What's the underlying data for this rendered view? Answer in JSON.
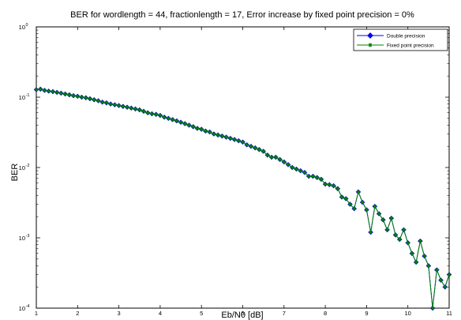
{
  "chart_data": {
    "type": "line",
    "title": "BER for wordlength = 44, fractionlength = 17, Error increase by fixed point precision = 0%",
    "xlabel": "Eb/N0 [dB]",
    "ylabel": "BER",
    "xlim": [
      1,
      11
    ],
    "ylim": [
      0.0001,
      1
    ],
    "y_scale": "log",
    "x_ticks": [
      "1",
      "2",
      "3",
      "4",
      "5",
      "6",
      "7",
      "8",
      "9",
      "10",
      "11"
    ],
    "y_ticks": [
      {
        "base": "10",
        "exp": "0"
      },
      {
        "base": "10",
        "exp": "-1"
      },
      {
        "base": "10",
        "exp": "-2"
      },
      {
        "base": "10",
        "exp": "-3"
      },
      {
        "base": "10",
        "exp": "-4"
      }
    ],
    "grid": false,
    "legend_position": "top-right",
    "series": [
      {
        "name": "Double precision",
        "color": "#0000ff",
        "marker": "diamond"
      },
      {
        "name": "Fixed point precision",
        "color": "#008000",
        "marker": "star"
      }
    ],
    "x": [
      1.0,
      1.1,
      1.2,
      1.3,
      1.4,
      1.5,
      1.6,
      1.7,
      1.8,
      1.9,
      2.0,
      2.1,
      2.2,
      2.3,
      2.4,
      2.5,
      2.6,
      2.7,
      2.8,
      2.9,
      3.0,
      3.1,
      3.2,
      3.3,
      3.4,
      3.5,
      3.6,
      3.7,
      3.8,
      3.9,
      4.0,
      4.1,
      4.2,
      4.3,
      4.4,
      4.5,
      4.6,
      4.7,
      4.8,
      4.9,
      5.0,
      5.1,
      5.2,
      5.3,
      5.4,
      5.5,
      5.6,
      5.7,
      5.8,
      5.9,
      6.0,
      6.1,
      6.2,
      6.3,
      6.4,
      6.5,
      6.6,
      6.7,
      6.8,
      6.9,
      7.0,
      7.1,
      7.2,
      7.3,
      7.4,
      7.5,
      7.6,
      7.7,
      7.8,
      7.9,
      8.0,
      8.1,
      8.2,
      8.3,
      8.4,
      8.5,
      8.6,
      8.7,
      8.8,
      8.9,
      9.0,
      9.1,
      9.2,
      9.3,
      9.4,
      9.5,
      9.6,
      9.7,
      9.8,
      9.9,
      10.0,
      10.1,
      10.2,
      10.3,
      10.4,
      10.5,
      10.6,
      10.7,
      10.8,
      10.9,
      11.0
    ],
    "y": [
      0.128,
      0.13,
      0.125,
      0.122,
      0.12,
      0.117,
      0.114,
      0.111,
      0.108,
      0.105,
      0.103,
      0.1,
      0.098,
      0.095,
      0.092,
      0.089,
      0.085,
      0.083,
      0.08,
      0.078,
      0.076,
      0.074,
      0.072,
      0.07,
      0.068,
      0.066,
      0.063,
      0.06,
      0.058,
      0.057,
      0.055,
      0.052,
      0.05,
      0.048,
      0.046,
      0.044,
      0.042,
      0.04,
      0.038,
      0.036,
      0.035,
      0.033,
      0.032,
      0.03,
      0.029,
      0.028,
      0.027,
      0.026,
      0.025,
      0.024,
      0.023,
      0.021,
      0.02,
      0.019,
      0.018,
      0.017,
      0.015,
      0.014,
      0.014,
      0.013,
      0.012,
      0.011,
      0.01,
      0.0095,
      0.009,
      0.0085,
      0.0075,
      0.0075,
      0.0072,
      0.0068,
      0.0058,
      0.0057,
      0.0055,
      0.005,
      0.0038,
      0.0036,
      0.003,
      0.0026,
      0.0045,
      0.0032,
      0.0025,
      0.0012,
      0.0028,
      0.0022,
      0.0018,
      0.0013,
      0.0019,
      0.0011,
      0.00095,
      0.0013,
      0.00085,
      0.0006,
      0.00045,
      0.0009,
      0.00055,
      0.0004,
      0.0001,
      0.00035,
      0.00025,
      0.0002,
      0.0003
    ]
  }
}
